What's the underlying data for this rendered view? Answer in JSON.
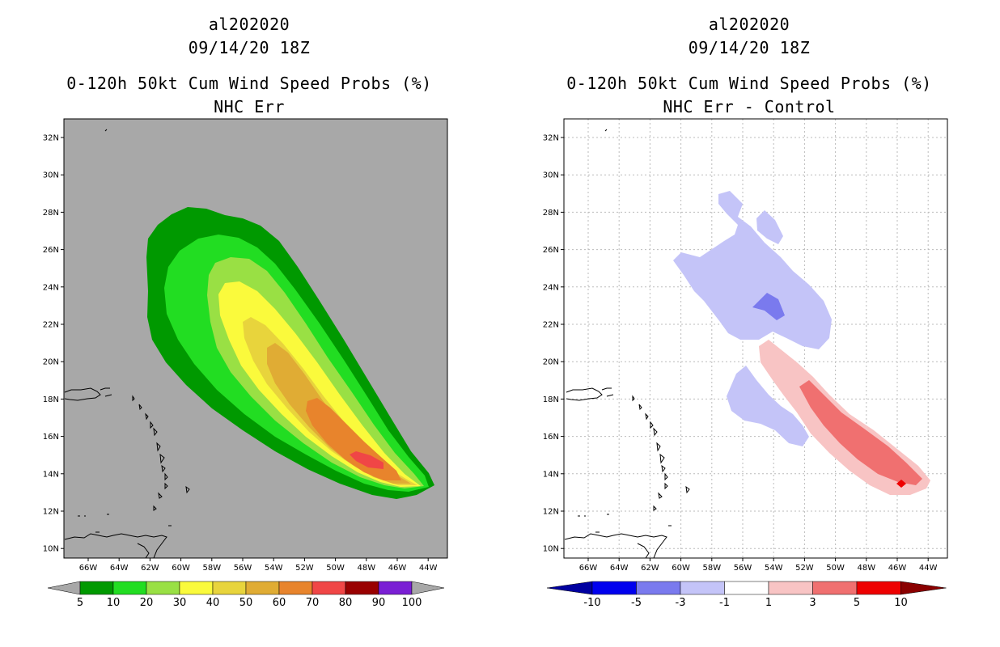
{
  "left_panel": {
    "storm_id": "al202020",
    "datetime": "09/14/20 18Z",
    "title": "0-120h 50kt Cum Wind Speed Probs (%)",
    "subtitle": "NHC Err",
    "colorbar": {
      "labels": [
        "5",
        "10",
        "20",
        "30",
        "40",
        "50",
        "60",
        "70",
        "80",
        "90",
        "100"
      ],
      "colors": [
        "#009900",
        "#22dd22",
        "#99e044",
        "#fafa3c",
        "#e8d43c",
        "#e0ac34",
        "#e8842c",
        "#f04646",
        "#990000",
        "#7a1fd4"
      ]
    }
  },
  "right_panel": {
    "storm_id": "al202020",
    "datetime": "09/14/20 18Z",
    "title": "0-120h 50kt Cum Wind Speed Probs (%)",
    "subtitle": "NHC Err - Control",
    "colorbar": {
      "labels": [
        "-10",
        "-5",
        "-3",
        "-1",
        "1",
        "3",
        "5",
        "10"
      ],
      "colors": [
        "#0000a0",
        "#0000ee",
        "#7a7aee",
        "#c4c4f8",
        "#ffffff",
        "#f8c4c4",
        "#f07070",
        "#ee0000",
        "#8a0000"
      ]
    }
  },
  "map": {
    "lat_labels": [
      "32N",
      "30N",
      "28N",
      "26N",
      "24N",
      "22N",
      "20N",
      "18N",
      "16N",
      "14N",
      "12N",
      "10N"
    ],
    "lon_labels": [
      "66W",
      "64W",
      "62W",
      "60W",
      "58W",
      "56W",
      "54W",
      "52W",
      "50W",
      "48W",
      "46W",
      "44W"
    ]
  }
}
